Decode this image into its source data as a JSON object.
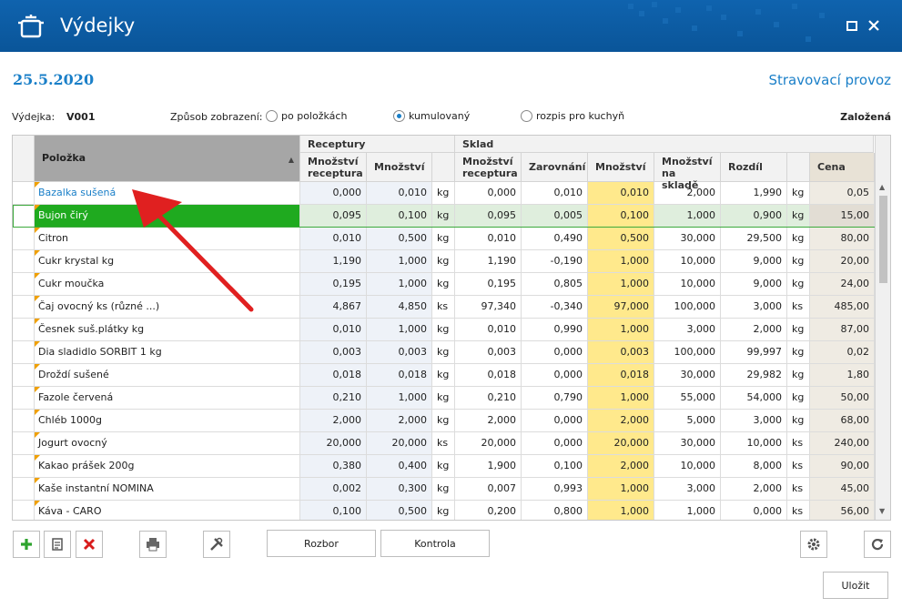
{
  "window": {
    "title": "Výdejky",
    "icon": "cooking-pot-icon",
    "maximize": "maximize-icon",
    "close": "close-icon"
  },
  "header": {
    "date": "25.5.2020",
    "department": "Stravovací provoz"
  },
  "info": {
    "vydejka_label": "Výdejka:",
    "vydejka_value": "V001",
    "mode_label": "Způsob zobrazení:",
    "modes": [
      {
        "label": "po položkách",
        "selected": false
      },
      {
        "label": "kumulovaný",
        "selected": true
      },
      {
        "label": "rozpis pro kuchyň",
        "selected": false
      }
    ],
    "status": "Založená"
  },
  "grid": {
    "group_receptury": "Receptury",
    "group_sklad": "Sklad",
    "col_item": "Položka",
    "col_rec_qty": "Množství receptura",
    "col_qty": "Množství",
    "col_sklad_rec": "Množství receptura",
    "col_round": "Zarovnání",
    "col_sklad_qty": "Množství",
    "col_stock": "Množství na skladě",
    "col_diff": "Rozdíl",
    "col_price": "Cena",
    "rows": [
      {
        "name": "Bazalka sušená",
        "rec": "0,000",
        "qty": "0,010",
        "unit": "kg",
        "srec": "0,000",
        "round": "0,010",
        "sqty": "0,010",
        "stock": "2,000",
        "diff": "1,990",
        "unit2": "kg",
        "price": "0,05"
      },
      {
        "name": "Bujon  čirý",
        "rec": "0,095",
        "qty": "0,100",
        "unit": "kg",
        "srec": "0,095",
        "round": "0,005",
        "sqty": "0,100",
        "stock": "1,000",
        "diff": "0,900",
        "unit2": "kg",
        "price": "15,00"
      },
      {
        "name": "Citron",
        "rec": "0,010",
        "qty": "0,500",
        "unit": "kg",
        "srec": "0,010",
        "round": "0,490",
        "sqty": "0,500",
        "stock": "30,000",
        "diff": "29,500",
        "unit2": "kg",
        "price": "80,00"
      },
      {
        "name": "Cukr krystal kg",
        "rec": "1,190",
        "qty": "1,000",
        "unit": "kg",
        "srec": "1,190",
        "round": "-0,190",
        "sqty": "1,000",
        "stock": "10,000",
        "diff": "9,000",
        "unit2": "kg",
        "price": "20,00"
      },
      {
        "name": "Cukr moučka",
        "rec": "0,195",
        "qty": "1,000",
        "unit": "kg",
        "srec": "0,195",
        "round": "0,805",
        "sqty": "1,000",
        "stock": "10,000",
        "diff": "9,000",
        "unit2": "kg",
        "price": "24,00"
      },
      {
        "name": "Čaj ovocný  ks (různé ...)",
        "rec": "4,867",
        "qty": "4,850",
        "unit": "ks",
        "srec": "97,340",
        "round": "-0,340",
        "sqty": "97,000",
        "stock": "100,000",
        "diff": "3,000",
        "unit2": "ks",
        "price": "485,00"
      },
      {
        "name": "Česnek  suš.plátky  kg",
        "rec": "0,010",
        "qty": "1,000",
        "unit": "kg",
        "srec": "0,010",
        "round": "0,990",
        "sqty": "1,000",
        "stock": "3,000",
        "diff": "2,000",
        "unit2": "kg",
        "price": "87,00"
      },
      {
        "name": "Dia sladidlo SORBIT 1 kg",
        "rec": "0,003",
        "qty": "0,003",
        "unit": "kg",
        "srec": "0,003",
        "round": "0,000",
        "sqty": "0,003",
        "stock": "100,000",
        "diff": "99,997",
        "unit2": "kg",
        "price": "0,02"
      },
      {
        "name": "Droždí sušené",
        "rec": "0,018",
        "qty": "0,018",
        "unit": "kg",
        "srec": "0,018",
        "round": "0,000",
        "sqty": "0,018",
        "stock": "30,000",
        "diff": "29,982",
        "unit2": "kg",
        "price": "1,80"
      },
      {
        "name": "Fazole červená",
        "rec": "0,210",
        "qty": "1,000",
        "unit": "kg",
        "srec": "0,210",
        "round": "0,790",
        "sqty": "1,000",
        "stock": "55,000",
        "diff": "54,000",
        "unit2": "kg",
        "price": "50,00"
      },
      {
        "name": "Chléb 1000g",
        "rec": "2,000",
        "qty": "2,000",
        "unit": "kg",
        "srec": "2,000",
        "round": "0,000",
        "sqty": "2,000",
        "stock": "5,000",
        "diff": "3,000",
        "unit2": "kg",
        "price": "68,00"
      },
      {
        "name": "Jogurt  ovocný",
        "rec": "20,000",
        "qty": "20,000",
        "unit": "ks",
        "srec": "20,000",
        "round": "0,000",
        "sqty": "20,000",
        "stock": "30,000",
        "diff": "10,000",
        "unit2": "ks",
        "price": "240,00"
      },
      {
        "name": "Kakao prášek 200g",
        "rec": "0,380",
        "qty": "0,400",
        "unit": "kg",
        "srec": "1,900",
        "round": "0,100",
        "sqty": "2,000",
        "stock": "10,000",
        "diff": "8,000",
        "unit2": "ks",
        "price": "90,00"
      },
      {
        "name": "Kaše instantní NOMINA",
        "rec": "0,002",
        "qty": "0,300",
        "unit": "kg",
        "srec": "0,007",
        "round": "0,993",
        "sqty": "1,000",
        "stock": "3,000",
        "diff": "2,000",
        "unit2": "ks",
        "price": "45,00"
      },
      {
        "name": "Káva - CARO",
        "rec": "0,100",
        "qty": "0,500",
        "unit": "kg",
        "srec": "0,200",
        "round": "0,800",
        "sqty": "1,000",
        "stock": "1,000",
        "diff": "0,000",
        "unit2": "ks",
        "price": "56,00"
      }
    ]
  },
  "toolbar": {
    "rozbor": "Rozbor",
    "kontrola": "Kontrola",
    "ulozit": "Uložit"
  },
  "colors": {
    "accent": "#1a7fc8",
    "selected": "#1faa1f",
    "highlight": "#ffe98c",
    "titlebar": "#0d5ea8",
    "arrow": "#e02020"
  }
}
